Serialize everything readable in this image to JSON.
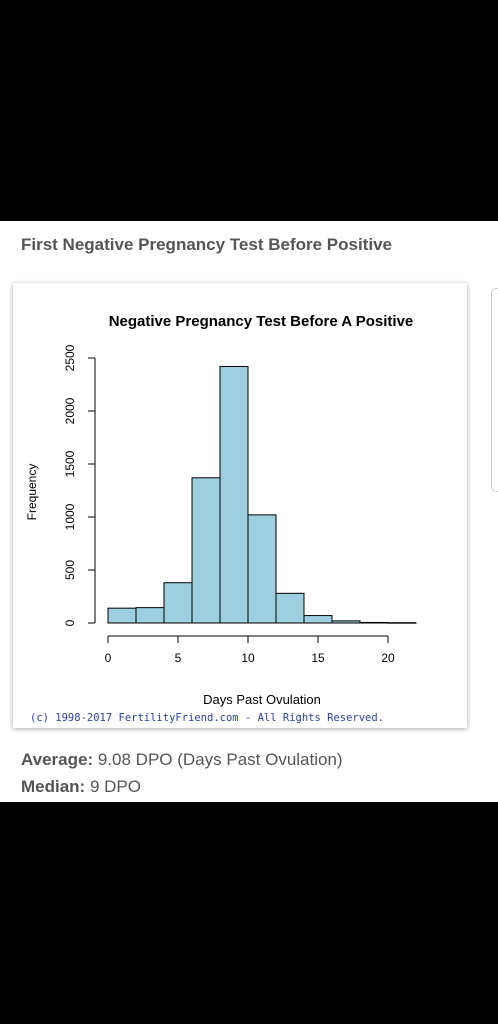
{
  "section": {
    "title": "First Negative Pregnancy Test Before Positive"
  },
  "stats": {
    "average_label": "Average:",
    "average_value": "9.08 DPO (Days Past Ovulation)",
    "median_label": "Median:",
    "median_value": "9 DPO"
  },
  "chart_data": {
    "type": "bar",
    "title": "Negative Pregnancy Test Before A Positive",
    "xlabel": "Days Past Ovulation",
    "ylabel": "Frequency",
    "copyright": "(c) 1998-2017 FertilityFriend.com - All Rights Reserved.",
    "bin_edges": [
      0,
      2,
      4,
      6,
      8,
      10,
      12,
      14,
      16,
      18,
      20,
      22
    ],
    "values": [
      140,
      145,
      380,
      1370,
      2420,
      1020,
      280,
      70,
      20,
      5,
      3
    ],
    "xlim": [
      0,
      22
    ],
    "ylim": [
      0,
      2500
    ],
    "xticks": [
      0,
      5,
      10,
      15,
      20
    ],
    "yticks": [
      0,
      500,
      1000,
      1500,
      2000,
      2500
    ],
    "bar_color": "#9ecfe0",
    "grid": false,
    "legend": "none"
  }
}
